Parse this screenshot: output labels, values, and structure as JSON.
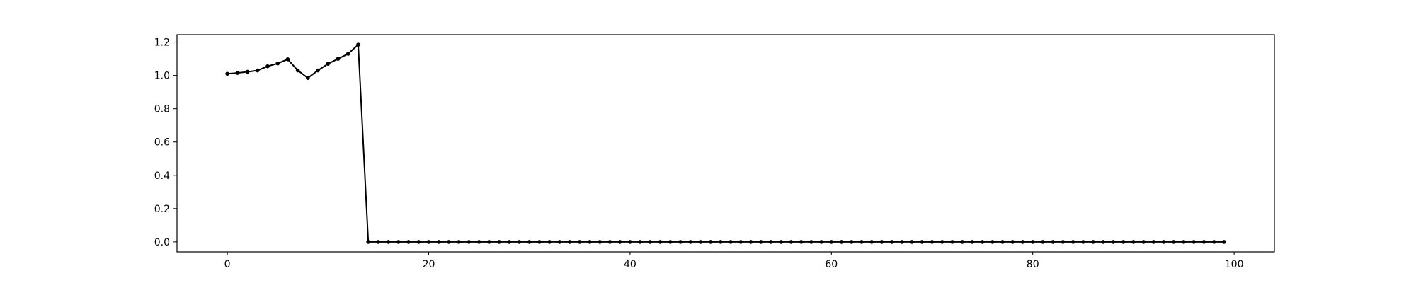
{
  "chart_data": {
    "type": "line",
    "title": "",
    "xlabel": "",
    "ylabel": "",
    "xlim": [
      -5,
      104
    ],
    "ylim": [
      -0.06,
      1.245
    ],
    "x_ticks": [
      0,
      20,
      40,
      60,
      80,
      100
    ],
    "y_ticks": [
      0.0,
      0.2,
      0.4,
      0.6,
      0.8,
      1.0,
      1.2
    ],
    "x_tick_labels": [
      "0",
      "20",
      "40",
      "60",
      "80",
      "100"
    ],
    "y_tick_labels": [
      "0.0",
      "0.2",
      "0.4",
      "0.6",
      "0.8",
      "1.0",
      "1.2"
    ],
    "grid": false,
    "legend": false,
    "line_color": "#000000",
    "marker": "point",
    "series": [
      {
        "x_start": 0,
        "x_step": 1,
        "values": [
          1.01,
          1.015,
          1.022,
          1.03,
          1.055,
          1.072,
          1.097,
          1.03,
          0.985,
          1.03,
          1.07,
          1.1,
          1.13,
          1.185,
          0.0,
          0.0,
          0.0,
          0.0,
          0.0,
          0.0,
          0.0,
          0.0,
          0.0,
          0.0,
          0.0,
          0.0,
          0.0,
          0.0,
          0.0,
          0.0,
          0.0,
          0.0,
          0.0,
          0.0,
          0.0,
          0.0,
          0.0,
          0.0,
          0.0,
          0.0,
          0.0,
          0.0,
          0.0,
          0.0,
          0.0,
          0.0,
          0.0,
          0.0,
          0.0,
          0.0,
          0.0,
          0.0,
          0.0,
          0.0,
          0.0,
          0.0,
          0.0,
          0.0,
          0.0,
          0.0,
          0.0,
          0.0,
          0.0,
          0.0,
          0.0,
          0.0,
          0.0,
          0.0,
          0.0,
          0.0,
          0.0,
          0.0,
          0.0,
          0.0,
          0.0,
          0.0,
          0.0,
          0.0,
          0.0,
          0.0,
          0.0,
          0.0,
          0.0,
          0.0,
          0.0,
          0.0,
          0.0,
          0.0,
          0.0,
          0.0,
          0.0,
          0.0,
          0.0,
          0.0,
          0.0,
          0.0,
          0.0,
          0.0,
          0.0,
          0.0
        ]
      }
    ]
  }
}
